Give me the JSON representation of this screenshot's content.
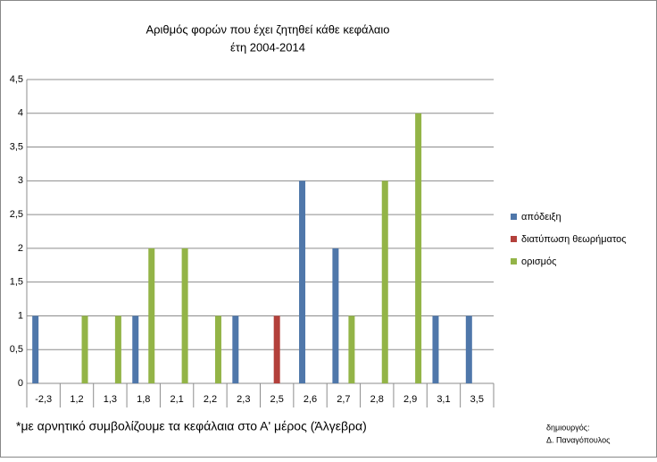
{
  "chart_data": {
    "type": "bar",
    "title": "Αριθμός φορών που έχει ζητηθεί κάθε κεφάλαιο",
    "subtitle": "έτη 2004-2014",
    "categories": [
      "-2,3",
      "1,2",
      "1,3",
      "1,8",
      "2,1",
      "2,2",
      "2,3",
      "2,5",
      "2,6",
      "2,7",
      "2,8",
      "2,9",
      "3,1",
      "3,5"
    ],
    "series": [
      {
        "name": "απόδειξη",
        "color": "#4f77aa",
        "values": [
          1,
          0,
          0,
          1,
          0,
          0,
          1,
          0,
          3,
          2,
          0,
          0,
          1,
          1
        ]
      },
      {
        "name": "διατύπωση θεωρήματος",
        "color": "#b3403b",
        "values": [
          0,
          0,
          0,
          0,
          0,
          0,
          0,
          1,
          0,
          0,
          0,
          0,
          0,
          0
        ]
      },
      {
        "name": "ορισμός",
        "color": "#93b447",
        "values": [
          0,
          1,
          1,
          2,
          2,
          1,
          0,
          0,
          0,
          1,
          3,
          4,
          0,
          0
        ]
      }
    ],
    "ylim": [
      0,
      4.5
    ],
    "yticks": [
      0,
      {
        "value": 0.5,
        "label": "0,5"
      },
      1,
      {
        "value": 1.5,
        "label": "1,5"
      },
      2,
      {
        "value": 2.5,
        "label": "2,5"
      },
      3,
      {
        "value": 3.5,
        "label": "3,5"
      },
      4,
      {
        "value": 4.5,
        "label": "4,5"
      }
    ],
    "grid": true,
    "legend": "right",
    "footnote": "*με αρνητικό συμβολίζουμε τα κεφάλαια στο Α' μέρος (Άλγεβρα)",
    "credit": [
      "δημιουργός:",
      "Δ. Παναγόπουλος"
    ]
  }
}
